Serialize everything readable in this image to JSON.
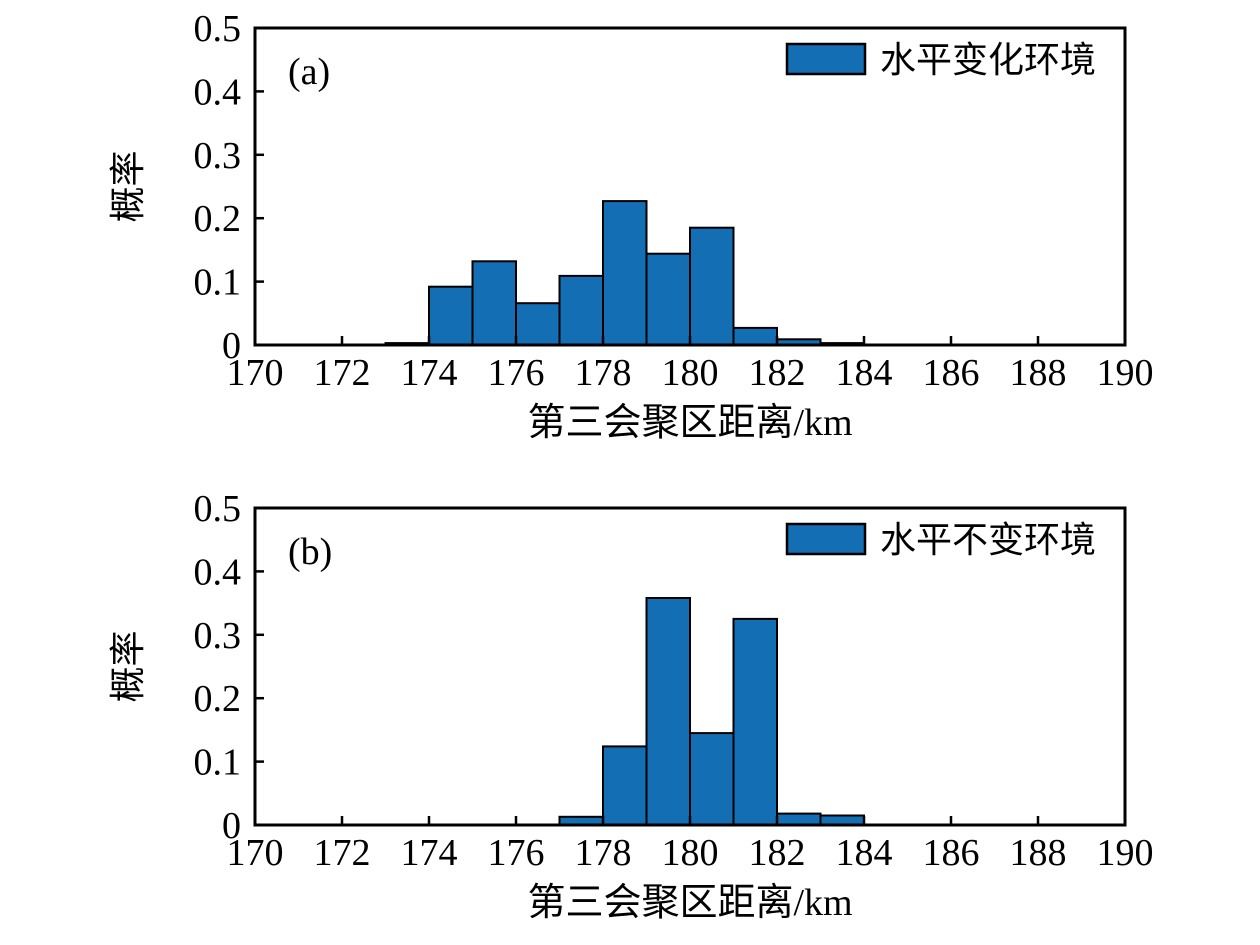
{
  "figure": {
    "background": "#ffffff",
    "bar_fill": "#146eb4",
    "bar_edge": "#000000",
    "frame_color": "#000000"
  },
  "chart_data": [
    {
      "type": "histogram",
      "panel_label": "(a)",
      "legend": {
        "label": "水平变化环境",
        "swatch_color": "#146eb4",
        "position": "top-right"
      },
      "xlabel": "第三会聚区距离/km",
      "ylabel": "概率",
      "xlim": [
        170,
        190
      ],
      "ylim": [
        0,
        0.5
      ],
      "xticks": [
        170,
        172,
        174,
        176,
        178,
        180,
        182,
        184,
        186,
        188,
        190
      ],
      "yticks": [
        0,
        0.1,
        0.2,
        0.3,
        0.4,
        0.5
      ],
      "grid": false,
      "bin_width": 1,
      "bins": [
        {
          "start": 173,
          "value": 0.003
        },
        {
          "start": 174,
          "value": 0.092
        },
        {
          "start": 175,
          "value": 0.132
        },
        {
          "start": 176,
          "value": 0.066
        },
        {
          "start": 177,
          "value": 0.109
        },
        {
          "start": 178,
          "value": 0.227
        },
        {
          "start": 179,
          "value": 0.144
        },
        {
          "start": 180,
          "value": 0.185
        },
        {
          "start": 181,
          "value": 0.027
        },
        {
          "start": 182,
          "value": 0.009
        },
        {
          "start": 183,
          "value": 0.003
        }
      ]
    },
    {
      "type": "histogram",
      "panel_label": "(b)",
      "legend": {
        "label": "水平不变环境",
        "swatch_color": "#146eb4",
        "position": "top-right"
      },
      "xlabel": "第三会聚区距离/km",
      "ylabel": "概率",
      "xlim": [
        170,
        190
      ],
      "ylim": [
        0,
        0.5
      ],
      "xticks": [
        170,
        172,
        174,
        176,
        178,
        180,
        182,
        184,
        186,
        188,
        190
      ],
      "yticks": [
        0,
        0.1,
        0.2,
        0.3,
        0.4,
        0.5
      ],
      "grid": false,
      "bin_width": 1,
      "bins": [
        {
          "start": 177,
          "value": 0.013
        },
        {
          "start": 178,
          "value": 0.124
        },
        {
          "start": 179,
          "value": 0.358
        },
        {
          "start": 180,
          "value": 0.145
        },
        {
          "start": 181,
          "value": 0.325
        },
        {
          "start": 182,
          "value": 0.018
        },
        {
          "start": 183,
          "value": 0.015
        }
      ]
    }
  ]
}
